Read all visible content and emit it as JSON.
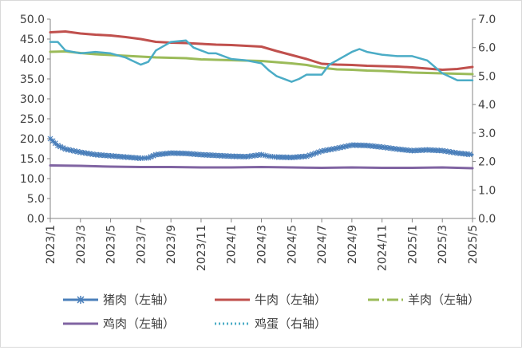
{
  "chart_data": {
    "type": "line",
    "title": "",
    "xlabel": "",
    "ylabel_left": "",
    "ylabel_right": "",
    "ylim_left": [
      0,
      50
    ],
    "ylim_right": [
      0,
      7
    ],
    "y_ticks_left": [
      "0.0",
      "5.0",
      "10.0",
      "15.0",
      "20.0",
      "25.0",
      "30.0",
      "35.0",
      "40.0",
      "45.0",
      "50.0"
    ],
    "y_ticks_right": [
      "0.0",
      "1.0",
      "2.0",
      "3.0",
      "4.0",
      "5.0",
      "6.0",
      "7.0"
    ],
    "x_tick_labels": [
      "2023/1",
      "2023/3",
      "2023/5",
      "2023/7",
      "2023/9",
      "2023/11",
      "2024/1",
      "2024/3",
      "2024/5",
      "2024/7",
      "2024/9",
      "2024/11",
      "2025/1",
      "2025/3",
      "2025/5"
    ],
    "x_range": [
      "2023/1",
      "2025/5"
    ],
    "grid": false,
    "legend_position": "bottom",
    "series": [
      {
        "name": "猪肉（左轴）",
        "axis": "left",
        "color": "#4a7fba",
        "style": "line-star-markers",
        "points": [
          [
            "2023/1",
            20.0
          ],
          [
            "2023/1.5",
            18.3
          ],
          [
            "2023/2",
            17.4
          ],
          [
            "2023/3",
            16.6
          ],
          [
            "2023/4",
            16.0
          ],
          [
            "2023/5",
            15.7
          ],
          [
            "2023/6",
            15.4
          ],
          [
            "2023/7",
            15.1
          ],
          [
            "2023/7.5",
            15.2
          ],
          [
            "2023/8",
            16.0
          ],
          [
            "2023/9",
            16.4
          ],
          [
            "2023/10",
            16.3
          ],
          [
            "2023/11",
            16.0
          ],
          [
            "2023/12",
            15.8
          ],
          [
            "2024/1",
            15.6
          ],
          [
            "2024/2",
            15.5
          ],
          [
            "2024/3",
            16.0
          ],
          [
            "2024/3.5",
            15.6
          ],
          [
            "2024/4",
            15.4
          ],
          [
            "2024/5",
            15.3
          ],
          [
            "2024/6",
            15.6
          ],
          [
            "2024/7",
            16.9
          ],
          [
            "2024/8",
            17.6
          ],
          [
            "2024/9",
            18.4
          ],
          [
            "2024/10",
            18.3
          ],
          [
            "2024/11",
            17.9
          ],
          [
            "2024/12",
            17.4
          ],
          [
            "2025/1",
            17.0
          ],
          [
            "2025/2",
            17.2
          ],
          [
            "2025/3",
            17.0
          ],
          [
            "2025/4",
            16.4
          ],
          [
            "2025/5",
            16.0
          ]
        ]
      },
      {
        "name": "牛肉（左轴）",
        "axis": "left",
        "color": "#c0504d",
        "style": "line",
        "points": [
          [
            "2023/1",
            46.7
          ],
          [
            "2023/2",
            46.9
          ],
          [
            "2023/3",
            46.4
          ],
          [
            "2023/4",
            46.1
          ],
          [
            "2023/5",
            45.9
          ],
          [
            "2023/6",
            45.5
          ],
          [
            "2023/7",
            45.0
          ],
          [
            "2023/8",
            44.3
          ],
          [
            "2023/9",
            44.1
          ],
          [
            "2023/10",
            44.0
          ],
          [
            "2023/11",
            43.8
          ],
          [
            "2023/12",
            43.6
          ],
          [
            "2024/1",
            43.5
          ],
          [
            "2024/2",
            43.3
          ],
          [
            "2024/3",
            43.1
          ],
          [
            "2024/4",
            42.0
          ],
          [
            "2024/5",
            41.0
          ],
          [
            "2024/6",
            40.0
          ],
          [
            "2024/7",
            38.8
          ],
          [
            "2024/8",
            38.6
          ],
          [
            "2024/9",
            38.5
          ],
          [
            "2024/10",
            38.3
          ],
          [
            "2024/11",
            38.2
          ],
          [
            "2024/12",
            38.1
          ],
          [
            "2025/1",
            37.9
          ],
          [
            "2025/2",
            37.6
          ],
          [
            "2025/3",
            37.3
          ],
          [
            "2025/4",
            37.5
          ],
          [
            "2025/5",
            38.0
          ]
        ]
      },
      {
        "name": "羊肉（左轴）",
        "axis": "left",
        "color": "#9bbb59",
        "style": "line-dash-dot",
        "points": [
          [
            "2023/1",
            41.8
          ],
          [
            "2023/2",
            41.9
          ],
          [
            "2023/3",
            41.5
          ],
          [
            "2023/4",
            41.2
          ],
          [
            "2023/5",
            41.0
          ],
          [
            "2023/6",
            40.8
          ],
          [
            "2023/7",
            40.6
          ],
          [
            "2023/8",
            40.4
          ],
          [
            "2023/9",
            40.3
          ],
          [
            "2023/10",
            40.2
          ],
          [
            "2023/11",
            39.9
          ],
          [
            "2023/12",
            39.8
          ],
          [
            "2024/1",
            39.7
          ],
          [
            "2024/2",
            39.6
          ],
          [
            "2024/3",
            39.5
          ],
          [
            "2024/4",
            39.2
          ],
          [
            "2024/5",
            38.9
          ],
          [
            "2024/6",
            38.5
          ],
          [
            "2024/7",
            37.8
          ],
          [
            "2024/8",
            37.4
          ],
          [
            "2024/9",
            37.3
          ],
          [
            "2024/10",
            37.1
          ],
          [
            "2024/11",
            37.0
          ],
          [
            "2024/12",
            36.8
          ],
          [
            "2025/1",
            36.6
          ],
          [
            "2025/2",
            36.5
          ],
          [
            "2025/3",
            36.4
          ],
          [
            "2025/4",
            36.3
          ],
          [
            "2025/5",
            36.2
          ]
        ]
      },
      {
        "name": "鸡肉（左轴）",
        "axis": "left",
        "color": "#8064a2",
        "style": "line",
        "points": [
          [
            "2023/1",
            13.3
          ],
          [
            "2023/3",
            13.2
          ],
          [
            "2023/5",
            13.0
          ],
          [
            "2023/7",
            12.9
          ],
          [
            "2023/9",
            12.9
          ],
          [
            "2023/11",
            12.8
          ],
          [
            "2024/1",
            12.8
          ],
          [
            "2024/3",
            12.9
          ],
          [
            "2024/5",
            12.8
          ],
          [
            "2024/7",
            12.7
          ],
          [
            "2024/9",
            12.8
          ],
          [
            "2024/11",
            12.7
          ],
          [
            "2025/1",
            12.7
          ],
          [
            "2025/3",
            12.8
          ],
          [
            "2025/5",
            12.6
          ]
        ]
      },
      {
        "name": "鸡蛋（右轴）",
        "axis": "right",
        "color": "#4bacc6",
        "style": "dotted",
        "points": [
          [
            "2023/1",
            6.2
          ],
          [
            "2023/1.5",
            6.2
          ],
          [
            "2023/2",
            5.9
          ],
          [
            "2023/3",
            5.8
          ],
          [
            "2023/4",
            5.85
          ],
          [
            "2023/5",
            5.8
          ],
          [
            "2023/6",
            5.65
          ],
          [
            "2023/7",
            5.4
          ],
          [
            "2023/7.5",
            5.5
          ],
          [
            "2023/8",
            5.9
          ],
          [
            "2023/9",
            6.2
          ],
          [
            "2023/10",
            6.25
          ],
          [
            "2023/10.5",
            6.0
          ],
          [
            "2023/11",
            5.9
          ],
          [
            "2023/11.5",
            5.8
          ],
          [
            "2023/12",
            5.8
          ],
          [
            "2024/1",
            5.6
          ],
          [
            "2024/2",
            5.55
          ],
          [
            "2024/3",
            5.45
          ],
          [
            "2024/3.5",
            5.2
          ],
          [
            "2024/4",
            5.0
          ],
          [
            "2024/5",
            4.8
          ],
          [
            "2024/5.5",
            4.9
          ],
          [
            "2024/6",
            5.05
          ],
          [
            "2024/7",
            5.05
          ],
          [
            "2024/7.5",
            5.4
          ],
          [
            "2024/8",
            5.55
          ],
          [
            "2024/9",
            5.85
          ],
          [
            "2024/9.5",
            5.95
          ],
          [
            "2024/10",
            5.85
          ],
          [
            "2024/11",
            5.75
          ],
          [
            "2024/12",
            5.7
          ],
          [
            "2025/1",
            5.7
          ],
          [
            "2025/2",
            5.55
          ],
          [
            "2025/3",
            5.1
          ],
          [
            "2025/4",
            4.85
          ],
          [
            "2025/5",
            4.85
          ]
        ]
      }
    ]
  }
}
